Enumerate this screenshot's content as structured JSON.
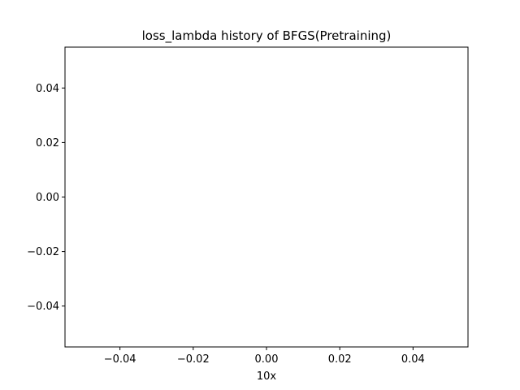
{
  "chart_data": {
    "type": "line",
    "title": "loss_lambda history of BFGS(Pretraining)",
    "xlabel": "10x",
    "ylabel": "",
    "xlim": [
      -0.055,
      0.055
    ],
    "ylim": [
      -0.055,
      0.055
    ],
    "x_ticks": [
      -0.04,
      -0.02,
      0.0,
      0.02,
      0.04
    ],
    "x_tick_labels": [
      "−0.04",
      "−0.02",
      "0.00",
      "0.02",
      "0.04"
    ],
    "y_ticks": [
      -0.04,
      -0.02,
      0.0,
      0.02,
      0.04
    ],
    "y_tick_labels": [
      "−0.04",
      "−0.02",
      "0.00",
      "0.02",
      "0.04"
    ],
    "grid": false,
    "series": []
  }
}
